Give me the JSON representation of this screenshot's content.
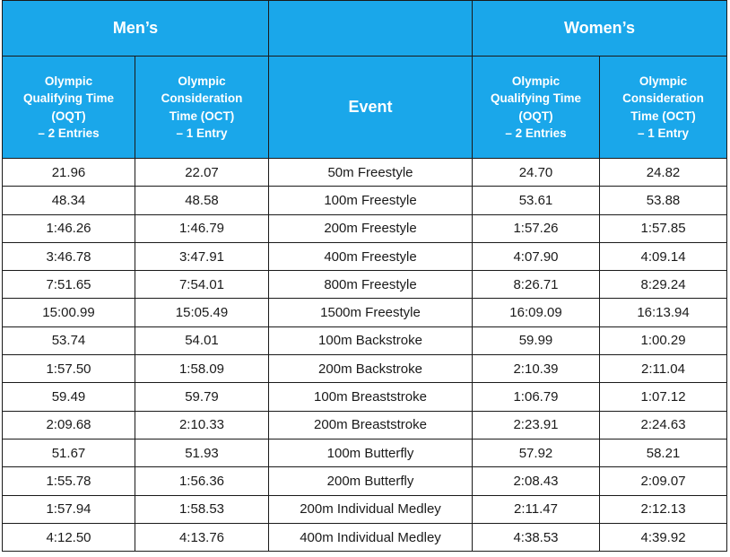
{
  "header": {
    "mens": "Men’s",
    "womens": "Women’s",
    "columns": [
      [
        "Olympic",
        "Qualifying Time",
        "(OQT)",
        "– 2 Entries"
      ],
      [
        "Olympic",
        "Consideration",
        "Time (OCT)",
        "– 1 Entry"
      ],
      [
        "Event"
      ],
      [
        "Olympic",
        "Qualifying Time",
        "(OQT)",
        "– 2 Entries"
      ],
      [
        "Olympic",
        "Consideration",
        "Time (OCT)",
        "– 1 Entry"
      ]
    ]
  },
  "colors": {
    "header_bg": "#1aa7ea",
    "header_text": "#ffffff",
    "border": "#1a1a1a"
  },
  "rows": [
    [
      "21.96",
      "22.07",
      "50m Freestyle",
      "24.70",
      "24.82"
    ],
    [
      "48.34",
      "48.58",
      "100m Freestyle",
      "53.61",
      "53.88"
    ],
    [
      "1:46.26",
      "1:46.79",
      "200m Freestyle",
      "1:57.26",
      "1:57.85"
    ],
    [
      "3:46.78",
      "3:47.91",
      "400m Freestyle",
      "4:07.90",
      "4:09.14"
    ],
    [
      "7:51.65",
      "7:54.01",
      "800m Freestyle",
      "8:26.71",
      "8:29.24"
    ],
    [
      "15:00.99",
      "15:05.49",
      "1500m Freestyle",
      "16:09.09",
      "16:13.94"
    ],
    [
      "53.74",
      "54.01",
      "100m Backstroke",
      "59.99",
      "1:00.29"
    ],
    [
      "1:57.50",
      "1:58.09",
      "200m Backstroke",
      "2:10.39",
      "2:11.04"
    ],
    [
      "59.49",
      "59.79",
      "100m Breaststroke",
      "1:06.79",
      "1:07.12"
    ],
    [
      "2:09.68",
      "2:10.33",
      "200m Breaststroke",
      "2:23.91",
      "2:24.63"
    ],
    [
      "51.67",
      "51.93",
      "100m Butterfly",
      "57.92",
      "58.21"
    ],
    [
      "1:55.78",
      "1:56.36",
      "200m Butterfly",
      "2:08.43",
      "2:09.07"
    ],
    [
      "1:57.94",
      "1:58.53",
      "200m Individual Medley",
      "2:11.47",
      "2:12.13"
    ],
    [
      "4:12.50",
      "4:13.76",
      "400m Individual Medley",
      "4:38.53",
      "4:39.92"
    ]
  ]
}
